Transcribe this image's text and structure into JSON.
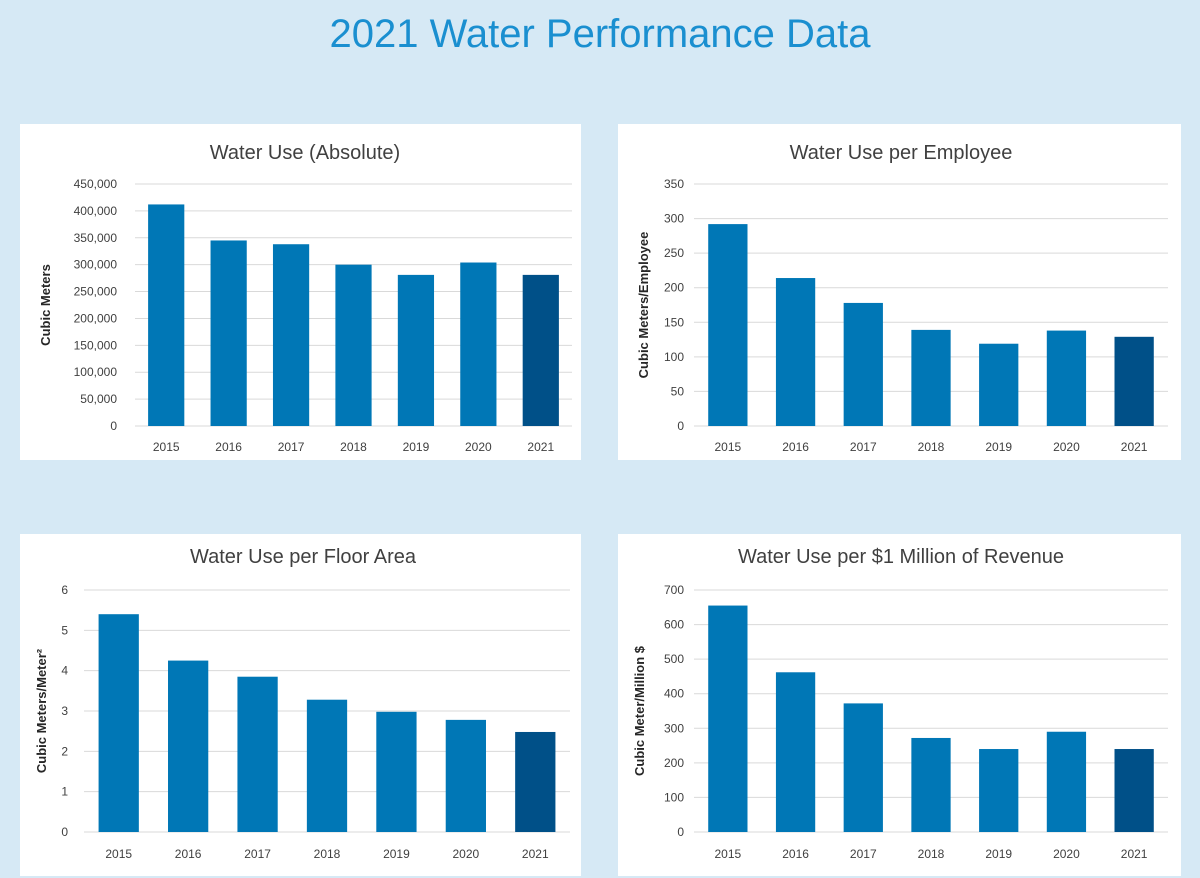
{
  "page": {
    "title": "2021 Water Performance Data"
  },
  "colors": {
    "bar": "#0077b6",
    "highlight": "#005088",
    "grid": "#d9d9d9"
  },
  "chart_data": [
    {
      "type": "bar",
      "title": "Water Use (Absolute)",
      "xlabel": "",
      "ylabel": "Cubic Meters",
      "categories": [
        "2015",
        "2016",
        "2017",
        "2018",
        "2019",
        "2020",
        "2021"
      ],
      "values": [
        412000,
        345000,
        338000,
        300000,
        281000,
        304000,
        281000
      ],
      "ylim": [
        0,
        450000
      ],
      "yticks": [
        "0",
        "50,000",
        "100,000",
        "150,000",
        "200,000",
        "250,000",
        "300,000",
        "350,000",
        "400,000",
        "450,000"
      ],
      "highlight_index": 6
    },
    {
      "type": "bar",
      "title": "Water Use per Employee",
      "xlabel": "",
      "ylabel": "Cubic Meters/Employee",
      "categories": [
        "2015",
        "2016",
        "2017",
        "2018",
        "2019",
        "2020",
        "2021"
      ],
      "values": [
        292,
        214,
        178,
        139,
        119,
        138,
        129
      ],
      "ylim": [
        0,
        350
      ],
      "yticks": [
        "0",
        "50",
        "100",
        "150",
        "200",
        "250",
        "300",
        "350"
      ],
      "highlight_index": 6
    },
    {
      "type": "bar",
      "title": "Water Use per Floor Area",
      "xlabel": "",
      "ylabel": "Cubic Meters/Meter²",
      "categories": [
        "2015",
        "2016",
        "2017",
        "2018",
        "2019",
        "2020",
        "2021"
      ],
      "values": [
        5.4,
        4.25,
        3.85,
        3.28,
        2.98,
        2.78,
        2.48
      ],
      "ylim": [
        0,
        6
      ],
      "yticks": [
        "0",
        "1",
        "2",
        "3",
        "4",
        "5",
        "6"
      ],
      "highlight_index": 6
    },
    {
      "type": "bar",
      "title": "Water Use per $1 Million of Revenue",
      "xlabel": "",
      "ylabel": "Cubic Meter/Million $",
      "categories": [
        "2015",
        "2016",
        "2017",
        "2018",
        "2019",
        "2020",
        "2021"
      ],
      "values": [
        655,
        462,
        372,
        272,
        240,
        290,
        240
      ],
      "ylim": [
        0,
        700
      ],
      "yticks": [
        "0",
        "100",
        "200",
        "300",
        "400",
        "500",
        "600",
        "700"
      ],
      "highlight_index": 6
    }
  ]
}
